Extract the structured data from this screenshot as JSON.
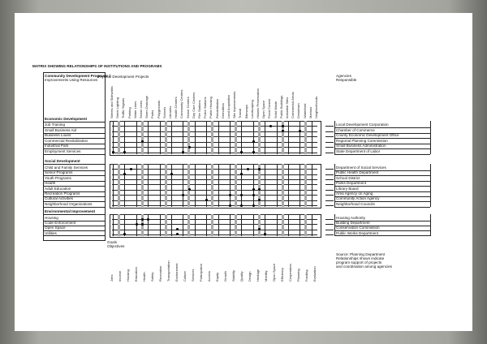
{
  "title": "MATRIX SHOWING RELATIONSHIPS OF INSTITUTIONS AND PROGRAMS",
  "left_header": [
    "Community Development Programs /",
    "Improvements Using Resources"
  ],
  "physical_header": "Physical Development Projects",
  "agencies_header": [
    "Agencies",
    "Responsible"
  ],
  "goals_header": [
    "Goals",
    "Objectives"
  ],
  "groups": [
    {
      "heading": "Economic Development",
      "rows": [
        "Job Training",
        "Small Business Aid",
        "Business Loans",
        "Commercial Revitalization",
        "Industrial Park",
        "Employment Services"
      ],
      "agencies": [
        "Local Development Corporation",
        "Chamber of Commerce",
        "County Economic Development Office",
        "Regional Planning Commission",
        "Small Business Administration",
        "State Department of Labor"
      ]
    },
    {
      "heading": "Social Development",
      "rows": [
        "Child and Family Services",
        "Senior Programs",
        "Youth Programs",
        "Health",
        "Adult Education",
        "Recreation Programs",
        "Cultural Activities",
        "Neighborhood Organizations"
      ],
      "agencies": [
        "Department of Social Services",
        "Public Health Department",
        "School District",
        "Parks Department",
        "Library Board",
        "Area Agency on Aging",
        "Community Action Agency",
        "Neighborhood Councils"
      ]
    },
    {
      "heading": "Environmental Improvement",
      "rows": [
        "Housing",
        "Code Enforcement",
        "Open Space",
        "Utilities"
      ],
      "agencies": [
        "Housing Authority",
        "Building Department",
        "Conservation Commission",
        "Public Works Department"
      ]
    }
  ],
  "columns": [
    "Streets and Sidewalks",
    "Street Lighting",
    "Traffic Signals",
    "Parking",
    "Water Lines",
    "Sewer Lines",
    "Storm Drainage",
    "Parks",
    "Playgrounds",
    "Schools",
    "Libraries",
    "Health Centers",
    "Community Centers",
    "Senior Centers",
    "Day Care Centers",
    "Fire Stations",
    "Police Stations",
    "Public Housing",
    "Rehabilitation",
    "Demolition",
    "Land Acquisition",
    "Site Improvements",
    "Transit",
    "Bikeways",
    "Landscaping",
    "Historic Preservation",
    "Open Space",
    "Flood Control",
    "Solid Waste",
    "Public Buildings",
    "Industrial Sites",
    "Commercial Areas",
    "Downtown",
    "Waterfront",
    "Marinas",
    "Neighborhoods"
  ],
  "bottom_labels": [
    "Jobs",
    "Income",
    "Housing",
    "Education",
    "Health",
    "Safety",
    "Recreation",
    "Transportation",
    "Environment",
    "Culture",
    "Services",
    "Participation",
    "Access",
    "Equity",
    "Growth",
    "Stability",
    "Quality",
    "Design",
    "Heritage",
    "Mobility",
    "Open Space",
    "Efficiency",
    "Cooperation",
    "Planning",
    "Funding",
    "Evaluation"
  ],
  "footnote": [
    "Source: Planning Department",
    "Relationships shown indicate",
    "program support of projects",
    "and coordination among agencies"
  ],
  "dots": [
    [
      [
        0,
        27
      ],
      [
        0,
        29
      ],
      [
        1,
        29
      ],
      [
        1,
        32
      ],
      [
        3,
        5
      ],
      [
        3,
        24
      ],
      [
        4,
        13
      ],
      [
        5,
        0
      ],
      [
        5,
        2
      ],
      [
        5,
        12
      ],
      [
        5,
        22
      ],
      [
        5,
        24
      ]
    ],
    [
      [
        0,
        3
      ],
      [
        0,
        23
      ],
      [
        0,
        25
      ],
      [
        1,
        2
      ],
      [
        1,
        10
      ],
      [
        1,
        22
      ],
      [
        4,
        13
      ],
      [
        4,
        24
      ],
      [
        4,
        25
      ],
      [
        5,
        12
      ],
      [
        5,
        20
      ],
      [
        5,
        22
      ],
      [
        5,
        24
      ],
      [
        6,
        16
      ],
      [
        6,
        25
      ],
      [
        7,
        20
      ],
      [
        7,
        22
      ],
      [
        7,
        24
      ]
    ],
    [
      [
        0,
        5
      ],
      [
        0,
        6
      ],
      [
        1,
        4
      ],
      [
        1,
        5
      ],
      [
        2,
        11
      ],
      [
        2,
        25
      ],
      [
        3,
        2
      ],
      [
        3,
        11
      ],
      [
        3,
        26
      ]
    ]
  ]
}
